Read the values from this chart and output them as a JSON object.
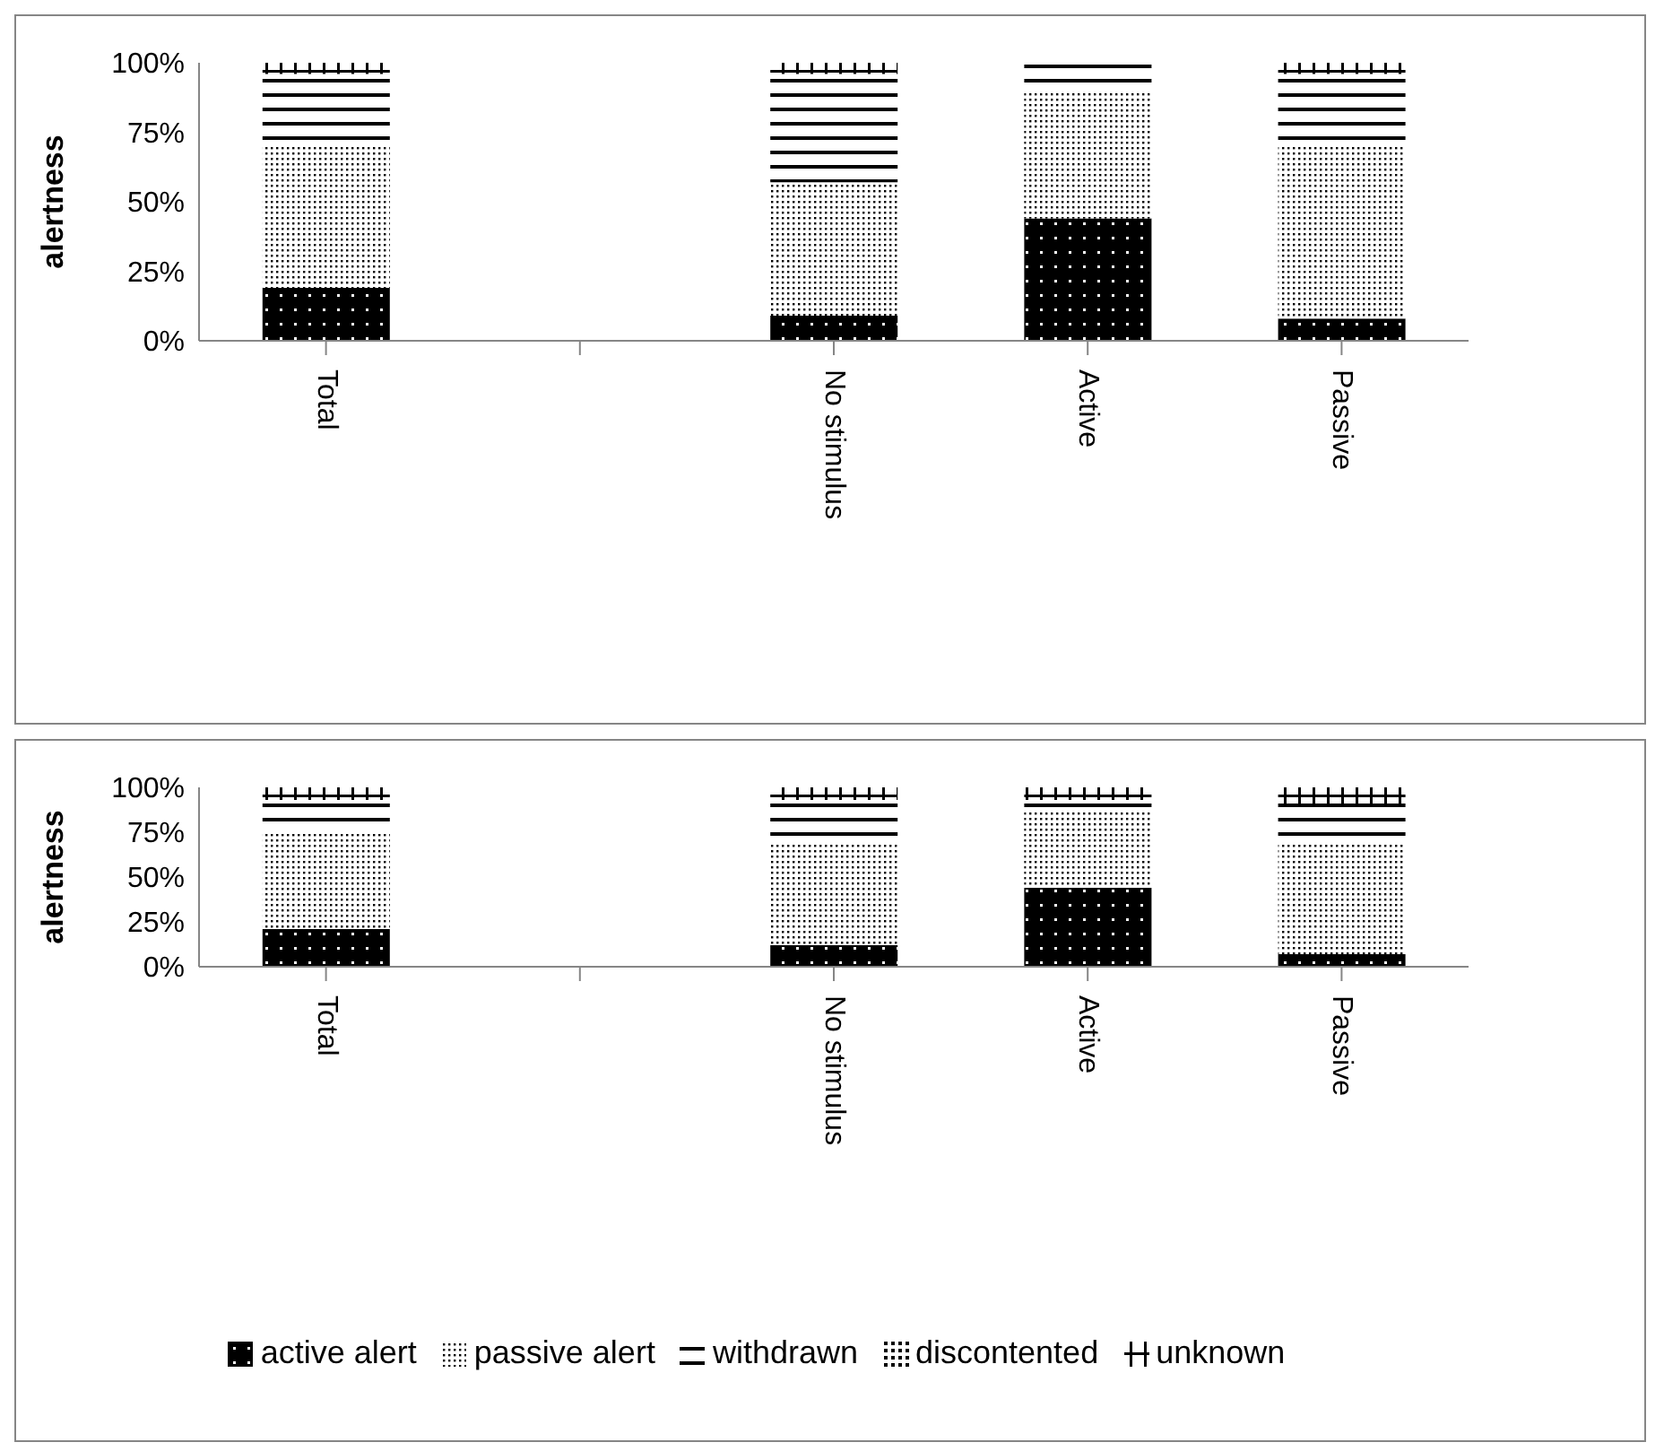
{
  "chart_data": [
    {
      "type": "bar",
      "stacked": true,
      "ylabel": "alertness",
      "categories": [
        "Total",
        null,
        "No stimulus",
        "Active",
        "Passive"
      ],
      "ylim": [
        0,
        100
      ],
      "yticks": [
        {
          "value": 0,
          "label": "0%"
        },
        {
          "value": 25,
          "label": "25%"
        },
        {
          "value": 50,
          "label": "50%"
        },
        {
          "value": 75,
          "label": "75%"
        },
        {
          "value": 100,
          "label": "100%"
        }
      ],
      "grid": false,
      "legend": false,
      "series": [
        {
          "color": "#000000",
          "values": [
            19,
            null,
            9,
            44,
            8
          ]
        },
        {
          "color": "#000000",
          "values": [
            51,
            null,
            48,
            45,
            62
          ]
        },
        {
          "color": "#000000",
          "values": [
            26,
            null,
            39,
            11,
            26
          ]
        },
        {
          "color": "#000000",
          "values": [
            0,
            null,
            0,
            0,
            0
          ]
        },
        {
          "color": "#000000",
          "values": [
            4,
            null,
            4,
            0,
            4
          ]
        }
      ]
    },
    {
      "type": "bar",
      "stacked": true,
      "ylabel": "alertness",
      "categories": [
        "Total",
        null,
        "No stimulus",
        "Active",
        "Passive"
      ],
      "ylim": [
        0,
        100
      ],
      "yticks": [
        {
          "value": 0,
          "label": "0%"
        },
        {
          "value": 25,
          "label": "25%"
        },
        {
          "value": 50,
          "label": "50%"
        },
        {
          "value": 75,
          "label": "75%"
        },
        {
          "value": 100,
          "label": "100%"
        }
      ],
      "grid": false,
      "legend": "bottom",
      "series": [
        {
          "name": "active alert",
          "color": "#000000",
          "values": [
            21,
            null,
            12,
            44,
            7
          ]
        },
        {
          "name": "passive alert",
          "color": "#000000",
          "values": [
            54,
            null,
            56,
            43,
            61
          ]
        },
        {
          "name": "withdrawn",
          "color": "#000000",
          "values": [
            18,
            null,
            25,
            6,
            23
          ]
        },
        {
          "name": "discontented",
          "color": "#000000",
          "values": [
            0,
            null,
            0,
            0,
            0
          ]
        },
        {
          "name": "unknown",
          "color": "#000000",
          "values": [
            7,
            null,
            7,
            7,
            9
          ]
        }
      ]
    }
  ]
}
